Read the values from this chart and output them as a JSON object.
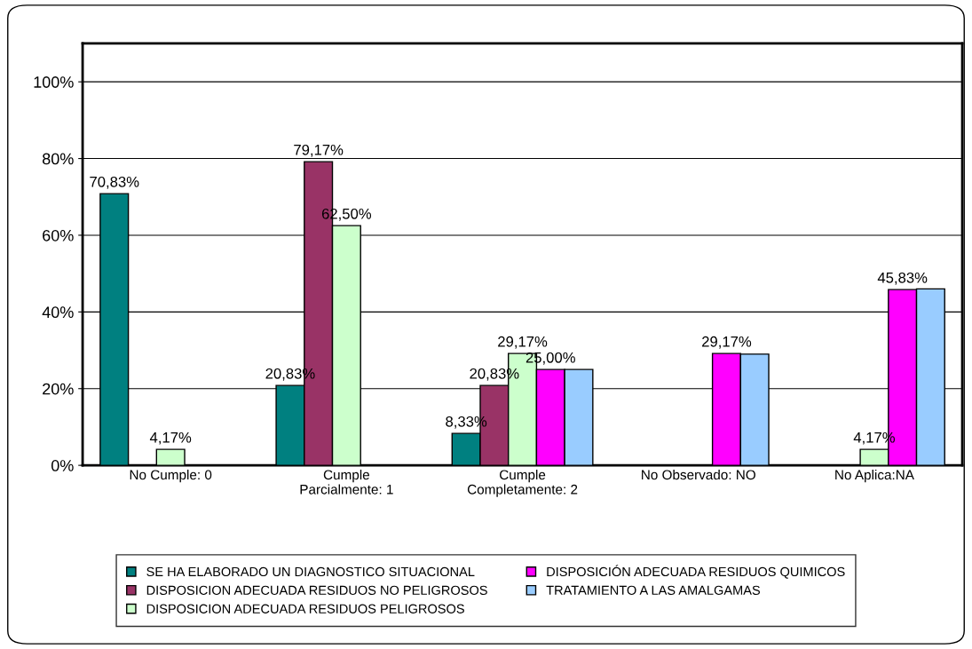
{
  "chart_data": {
    "type": "bar",
    "categories": [
      "No Cumple: 0",
      "Cumple\nParcialmente: 1",
      "Cumple\nCompletamente: 2",
      "No Observado: NO",
      "No Aplica:NA"
    ],
    "series": [
      {
        "name": "SE HA ELABORADO UN DIAGNOSTICO SITUACIONAL",
        "color": "#008080",
        "values": [
          70.83,
          20.83,
          8.33,
          null,
          null
        ],
        "value_labels": [
          "70,83%",
          "20,83%",
          "8,33%",
          null,
          null
        ]
      },
      {
        "name": "DISPOSICION ADECUADA RESIDUOS NO PELIGROSOS",
        "color": "#993366",
        "values": [
          null,
          79.17,
          20.83,
          null,
          null
        ],
        "value_labels": [
          null,
          "79,17%",
          "20,83%",
          null,
          null
        ]
      },
      {
        "name": "DISPOSICION ADECUADA RESIDUOS PELIGROSOS",
        "color": "#ccffcc",
        "values": [
          4.17,
          62.5,
          29.17,
          null,
          4.17
        ],
        "value_labels": [
          "4,17%",
          "62,50%",
          "29,17%",
          null,
          "4,17%"
        ]
      },
      {
        "name": "DISPOSICIÓN ADECUADA RESIDUOS QUIMICOS",
        "color": "#ff00ff",
        "values": [
          null,
          null,
          25.0,
          29.17,
          45.83
        ],
        "value_labels": [
          null,
          null,
          "25,00%",
          "29,17%",
          "45,83%"
        ]
      },
      {
        "name": "TRATAMIENTO A LAS AMALGAMAS",
        "color": "#99ccff",
        "values": [
          null,
          null,
          25,
          29,
          46
        ]
      }
    ],
    "ylim": [
      0,
      110
    ],
    "yticks": [
      {
        "value": 0,
        "label": "0%"
      },
      {
        "value": 20,
        "label": "20%"
      },
      {
        "value": 40,
        "label": "40%"
      },
      {
        "value": 60,
        "label": "60%"
      },
      {
        "value": 80,
        "label": "80%"
      },
      {
        "value": 100,
        "label": "100%"
      }
    ],
    "grid": "y",
    "legend": "bottom"
  }
}
